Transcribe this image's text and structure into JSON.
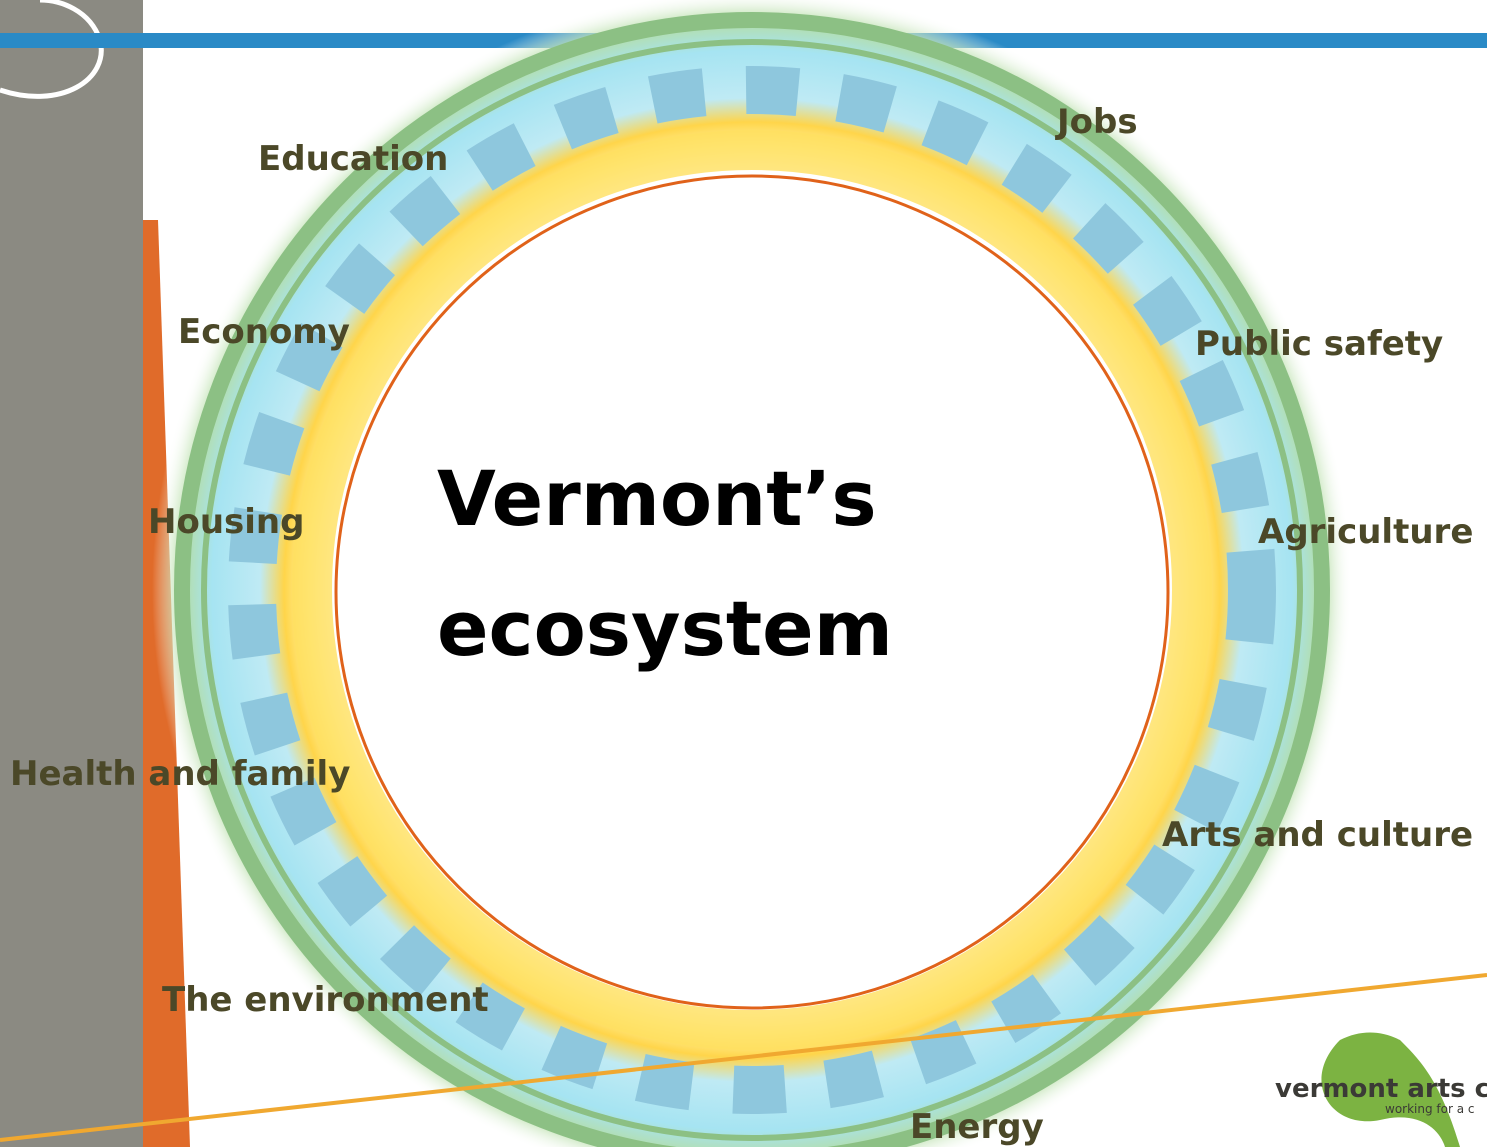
{
  "diagram": {
    "title_lines": [
      "Vermont’s",
      "ecosystem"
    ],
    "labels": [
      "Education",
      "Jobs",
      "Economy",
      "Public safety",
      "Housing",
      "Agriculture",
      "Health and family",
      "Arts and culture",
      "The environment",
      "Energy"
    ],
    "logo": {
      "name": "vermont arts c",
      "tagline": "working for a c"
    }
  }
}
